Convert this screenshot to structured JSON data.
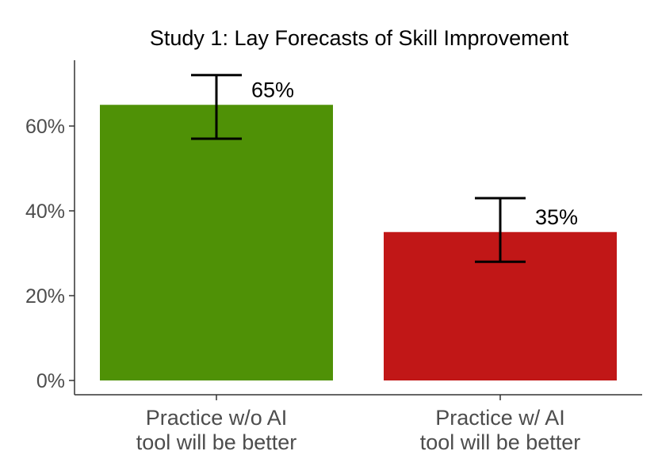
{
  "chart_data": {
    "type": "bar",
    "title": "Study 1: Lay Forecasts of Skill Improvement",
    "xlabel": "",
    "ylabel": "",
    "ylim": [
      -0.033,
      0.78
    ],
    "yticks": [
      0,
      0.2,
      0.4,
      0.6
    ],
    "ytick_labels": [
      "0%",
      "20%",
      "40%",
      "60%"
    ],
    "categories": [
      [
        "Practice w/o AI",
        "tool will be better"
      ],
      [
        "Practice w/ AI",
        "tool will be better"
      ]
    ],
    "values": [
      0.65,
      0.35
    ],
    "error_low": [
      0.57,
      0.28
    ],
    "error_high": [
      0.72,
      0.43
    ],
    "data_labels": [
      "65%",
      "35%"
    ],
    "colors": [
      "#4f9106",
      "#c11717"
    ],
    "grid": false,
    "legend": "none"
  }
}
